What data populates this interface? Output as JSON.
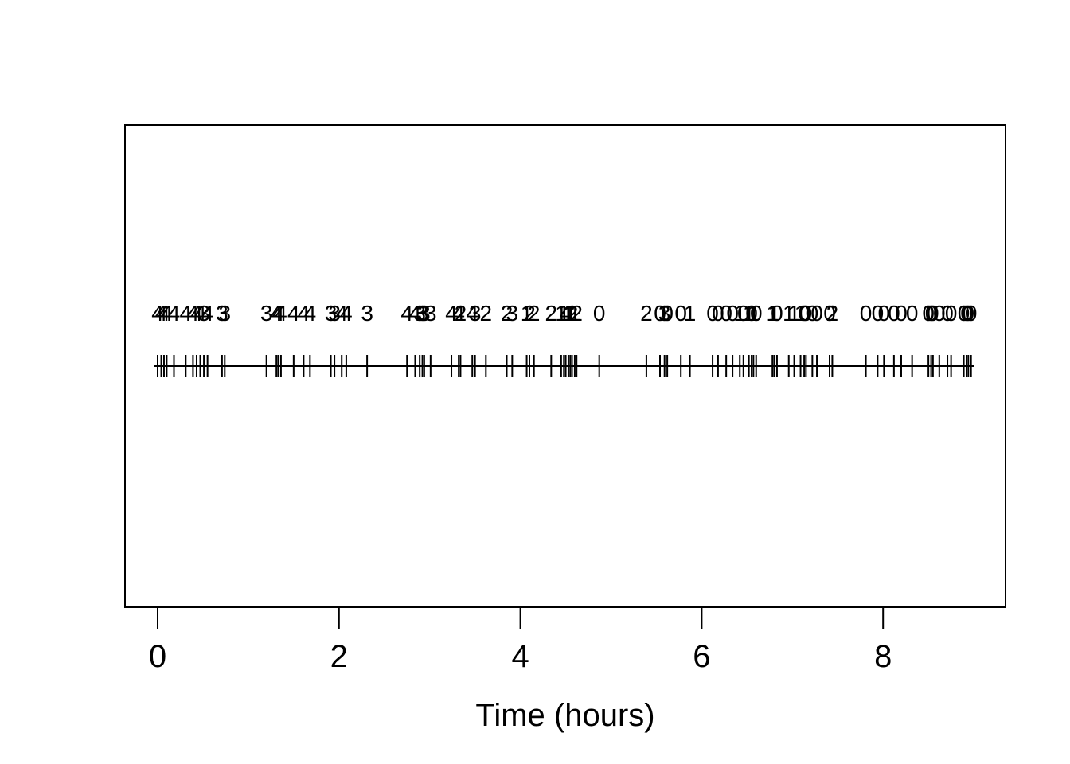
{
  "figure": {
    "background": "#ffffff",
    "stroke_color": "#000000"
  },
  "chart_data": {
    "type": "scatter",
    "subtype": "rug-event-plot",
    "title": "",
    "xlabel": "Time (hours)",
    "ylabel": "",
    "xlim": [
      -0.36,
      9.35
    ],
    "x_ticks": [
      0,
      2,
      4,
      6,
      8
    ],
    "grid": false,
    "legend": null,
    "description": "Event times marked as short vertical rug ticks on a horizontal baseline; each event has a small integer count label (0-4) printed above it. Labels overlap where events cluster.",
    "events_format": "[time_hours, count_label]",
    "events": [
      [
        0.0,
        4
      ],
      [
        0.04,
        4
      ],
      [
        0.07,
        4
      ],
      [
        0.1,
        4
      ],
      [
        0.18,
        4
      ],
      [
        0.31,
        4
      ],
      [
        0.39,
        4
      ],
      [
        0.43,
        4
      ],
      [
        0.47,
        4
      ],
      [
        0.51,
        3
      ],
      [
        0.55,
        4
      ],
      [
        0.71,
        3
      ],
      [
        0.74,
        3
      ],
      [
        1.2,
        3
      ],
      [
        1.31,
        4
      ],
      [
        1.33,
        4
      ],
      [
        1.36,
        4
      ],
      [
        1.5,
        4
      ],
      [
        1.61,
        4
      ],
      [
        1.68,
        4
      ],
      [
        1.91,
        3
      ],
      [
        1.95,
        3
      ],
      [
        2.03,
        4
      ],
      [
        2.08,
        4
      ],
      [
        2.31,
        3
      ],
      [
        2.75,
        4
      ],
      [
        2.84,
        4
      ],
      [
        2.89,
        3
      ],
      [
        2.92,
        3
      ],
      [
        2.94,
        3
      ],
      [
        3.01,
        3
      ],
      [
        3.24,
        4
      ],
      [
        3.32,
        4
      ],
      [
        3.34,
        2
      ],
      [
        3.47,
        4
      ],
      [
        3.5,
        3
      ],
      [
        3.62,
        2
      ],
      [
        3.85,
        2
      ],
      [
        3.91,
        3
      ],
      [
        4.07,
        1
      ],
      [
        4.1,
        2
      ],
      [
        4.15,
        2
      ],
      [
        4.34,
        2
      ],
      [
        4.45,
        1
      ],
      [
        4.48,
        1
      ],
      [
        4.5,
        4
      ],
      [
        4.53,
        1
      ],
      [
        4.55,
        1
      ],
      [
        4.57,
        2
      ],
      [
        4.6,
        1
      ],
      [
        4.62,
        2
      ],
      [
        4.87,
        0
      ],
      [
        5.39,
        2
      ],
      [
        5.54,
        0
      ],
      [
        5.59,
        3
      ],
      [
        5.62,
        0
      ],
      [
        5.77,
        0
      ],
      [
        5.87,
        1
      ],
      [
        6.12,
        0
      ],
      [
        6.18,
        0
      ],
      [
        6.27,
        0
      ],
      [
        6.34,
        0
      ],
      [
        6.42,
        1
      ],
      [
        6.46,
        0
      ],
      [
        6.52,
        1
      ],
      [
        6.55,
        0
      ],
      [
        6.57,
        1
      ],
      [
        6.6,
        0
      ],
      [
        6.78,
        1
      ],
      [
        6.8,
        1
      ],
      [
        6.83,
        0
      ],
      [
        6.96,
        1
      ],
      [
        7.02,
        1
      ],
      [
        7.09,
        1
      ],
      [
        7.13,
        0
      ],
      [
        7.15,
        0
      ],
      [
        7.22,
        0
      ],
      [
        7.27,
        0
      ],
      [
        7.41,
        0
      ],
      [
        7.44,
        2
      ],
      [
        7.81,
        0
      ],
      [
        7.94,
        0
      ],
      [
        8.01,
        0
      ],
      [
        8.12,
        0
      ],
      [
        8.2,
        0
      ],
      [
        8.32,
        0
      ],
      [
        8.5,
        0
      ],
      [
        8.53,
        0
      ],
      [
        8.55,
        0
      ],
      [
        8.62,
        0
      ],
      [
        8.71,
        0
      ],
      [
        8.75,
        0
      ],
      [
        8.89,
        0
      ],
      [
        8.92,
        0
      ],
      [
        8.94,
        0
      ],
      [
        8.97,
        0
      ]
    ]
  }
}
